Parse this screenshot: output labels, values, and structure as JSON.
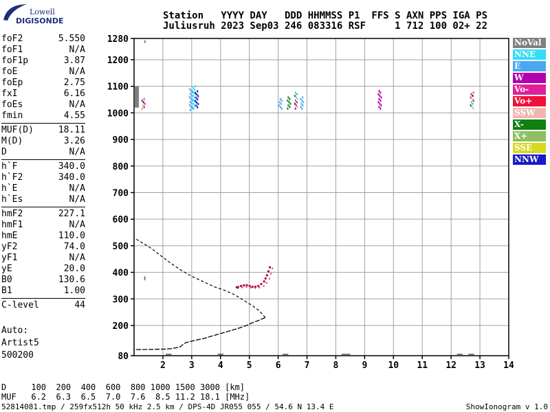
{
  "logo": {
    "line1": "Lowell",
    "line2": "DIGISONDE"
  },
  "header": {
    "line1": "Station   YYYY DAY   DDD HHMMSS P1  FFS S AXN PPS IGA PS",
    "line2": "Juliusruh 2023 Sep03 246 083316 RSF     1 712 100 02+ 22"
  },
  "params_groups": [
    [
      [
        "foF2",
        "5.550"
      ],
      [
        "foF1",
        "N/A"
      ],
      [
        "foF1p",
        "3.87"
      ],
      [
        "foE",
        "N/A"
      ],
      [
        "foEp",
        "2.75"
      ],
      [
        "fxI",
        "6.16"
      ],
      [
        "foEs",
        "N/A"
      ],
      [
        "fmin",
        "4.55"
      ]
    ],
    [
      [
        "MUF(D)",
        "18.11"
      ],
      [
        "M(D)",
        "3.26"
      ],
      [
        "D",
        "N/A"
      ]
    ],
    [
      [
        "h`F",
        "340.0"
      ],
      [
        "h`F2",
        "340.0"
      ],
      [
        "h`E",
        "N/A"
      ],
      [
        "h`Es",
        "N/A"
      ]
    ],
    [
      [
        "hmF2",
        "227.1"
      ],
      [
        "hmF1",
        "N/A"
      ],
      [
        "hmE",
        "110.0"
      ],
      [
        "yF2",
        "74.0"
      ],
      [
        "yF1",
        "N/A"
      ],
      [
        "yE",
        "20.0"
      ],
      [
        "B0",
        "130.6"
      ],
      [
        "B1",
        "1.00"
      ]
    ],
    [
      [
        "C-level",
        "44"
      ]
    ]
  ],
  "auto": {
    "line1": "Auto:",
    "line2": "Artist5",
    "line3": "500200"
  },
  "legend": [
    {
      "label": "NoVal",
      "color": "#808080"
    },
    {
      "label": "NNE",
      "color": "#33ddf5"
    },
    {
      "label": "E",
      "color": "#4aa8f0"
    },
    {
      "label": "W",
      "color": "#b000b0"
    },
    {
      "label": "Vo-",
      "color": "#e0209a"
    },
    {
      "label": "Vo+",
      "color": "#f0103a"
    },
    {
      "label": "SSW",
      "color": "#f2b6b0"
    },
    {
      "label": "X-",
      "color": "#108010"
    },
    {
      "label": "X+",
      "color": "#8fbf60"
    },
    {
      "label": "SSE",
      "color": "#d8d820"
    },
    {
      "label": "NNW",
      "color": "#1818c8"
    }
  ],
  "footer": {
    "line1": "D     100  200  400  600  800 1000 1500 3000 [km]",
    "line2": "MUF   6.2  6.3  6.5  7.0  7.6  8.5 11.2 18.1 [MHz]",
    "line3": "52814081.tmp / 259fx512h 50 kHz 2.5 km / DPS-4D JR055 055 / 54.6 N 13.4 E",
    "right": "ShowIonogram v 1.0"
  },
  "chart_data": {
    "type": "scatter",
    "xlim": [
      1,
      14
    ],
    "ylim": [
      80,
      1280
    ],
    "x_ticks": [
      "2",
      "3",
      "4",
      "5",
      "6",
      "7",
      "8",
      "9",
      "10",
      "11",
      "12",
      "13",
      "14"
    ],
    "y_ticks": [
      "80",
      "200",
      "300",
      "400",
      "500",
      "600",
      "700",
      "800",
      "900",
      "1000",
      "1100",
      "1200",
      "1280"
    ],
    "grid": true,
    "profile": {
      "x": [
        5.55,
        5.45,
        5.3,
        5.1,
        4.9,
        4.6,
        4.3,
        4.0,
        3.7,
        3.4,
        3.0,
        2.8,
        2.7,
        2.6,
        2.3,
        2.0,
        1.6,
        1.0
      ],
      "y": [
        230,
        225,
        218,
        210,
        200,
        188,
        178,
        168,
        158,
        148,
        138,
        132,
        125,
        115,
        108,
        106,
        105,
        104
      ]
    },
    "profile_upper": {
      "x": [
        5.55,
        5.35,
        5.1,
        4.8,
        4.5,
        4.2,
        3.8,
        3.4,
        3.0,
        2.6,
        2.2,
        1.9,
        1.6,
        1.3,
        1.0
      ],
      "y": [
        230,
        255,
        275,
        295,
        315,
        330,
        345,
        365,
        385,
        410,
        440,
        465,
        490,
        510,
        530
      ]
    },
    "trace_o": {
      "x": [
        4.55,
        4.6,
        4.7,
        4.8,
        4.9,
        5.0,
        5.1,
        5.2,
        5.3,
        5.4,
        5.5,
        5.55,
        5.6,
        5.65,
        5.7
      ],
      "y": [
        345,
        346,
        350,
        352,
        353,
        350,
        347,
        347,
        350,
        357,
        367,
        378,
        390,
        405,
        420
      ]
    },
    "trace_x": {
      "x": [
        4.6,
        4.75,
        4.9,
        5.05,
        5.2,
        5.35,
        5.5,
        5.6,
        5.7,
        5.75,
        5.8
      ],
      "y": [
        340,
        343,
        345,
        342,
        341,
        342,
        348,
        360,
        376,
        395,
        415
      ]
    },
    "echo_clusters": [
      {
        "x": 1.35,
        "y1": 1020,
        "y2": 1060,
        "color": "#808080"
      },
      {
        "x": 3.0,
        "y1": 1015,
        "y2": 1095,
        "color": "#4aa8f0"
      },
      {
        "x": 3.1,
        "y1": 1020,
        "y2": 1105,
        "color": "#33ddf5"
      },
      {
        "x": 3.2,
        "y1": 1025,
        "y2": 1090,
        "color": "#1818c8"
      },
      {
        "x": 6.1,
        "y1": 1020,
        "y2": 1060,
        "color": "#4aa8f0"
      },
      {
        "x": 6.4,
        "y1": 1020,
        "y2": 1065,
        "color": "#108010"
      },
      {
        "x": 6.65,
        "y1": 1020,
        "y2": 1080,
        "color": "#33ddf5"
      },
      {
        "x": 6.85,
        "y1": 1020,
        "y2": 1065,
        "color": "#4aa8f0"
      },
      {
        "x": 9.55,
        "y1": 1020,
        "y2": 1090,
        "color": "#b000b0"
      },
      {
        "x": 12.75,
        "y1": 1020,
        "y2": 1085,
        "color": "#1818c8"
      }
    ],
    "noval_band": {
      "x": 1.0,
      "y1": 1020,
      "y2": 1100,
      "color": "#808080"
    },
    "isolated_echoes": [
      {
        "x": 1.35,
        "y": 1268
      },
      {
        "x": 1.35,
        "y": 375
      },
      {
        "x": 1.35,
        "y": 380
      }
    ]
  }
}
